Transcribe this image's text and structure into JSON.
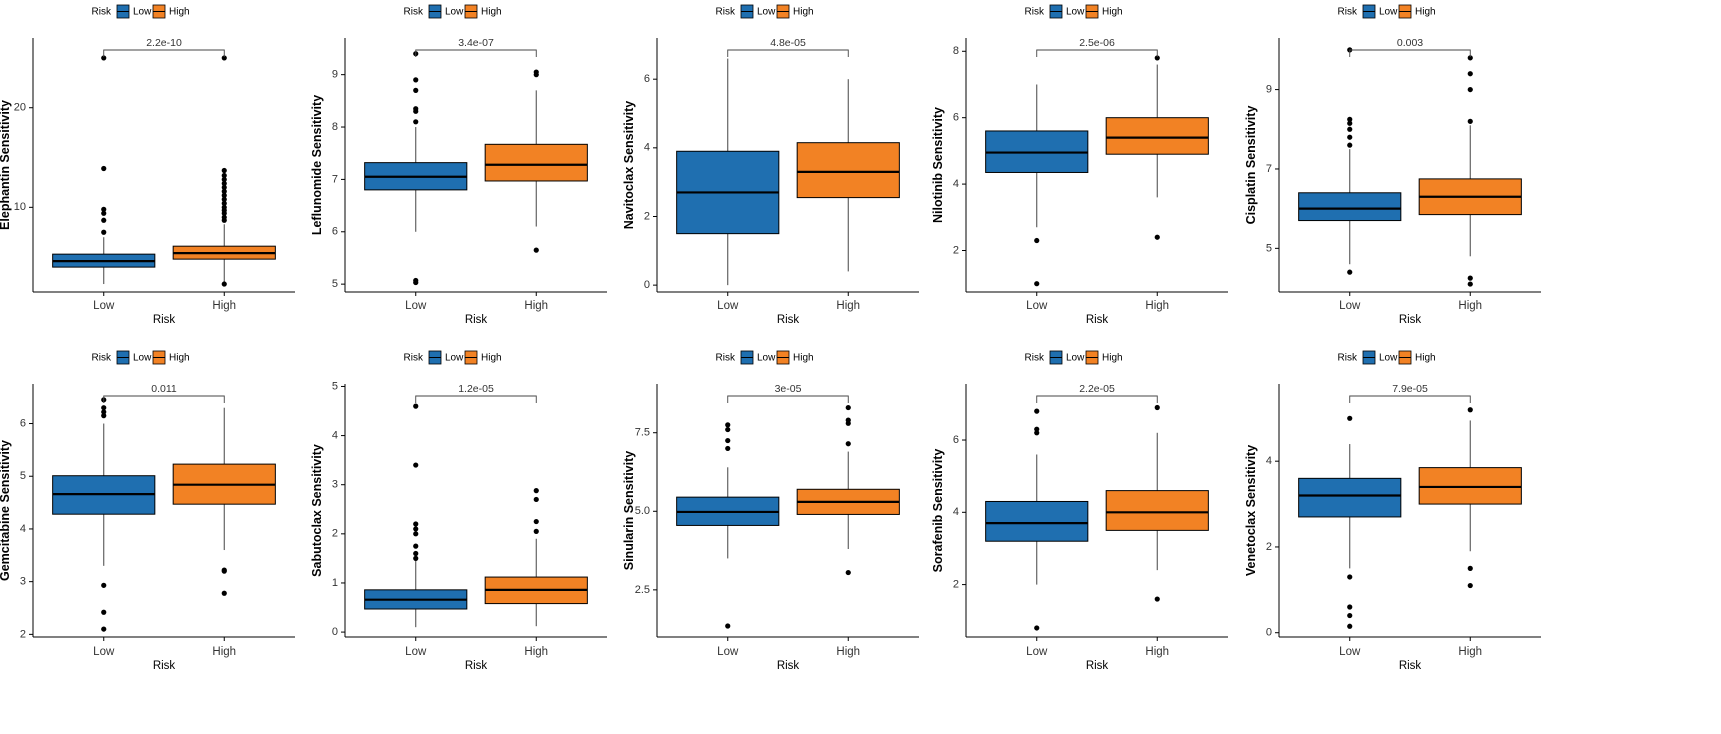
{
  "legend": {
    "title": "Risk",
    "labels": [
      "Low",
      "High"
    ]
  },
  "colors": {
    "low": "#1f6fb0",
    "high": "#f28224",
    "ink": "#000000",
    "bracket": "#444444"
  },
  "chart_data": [
    {
      "type": "box",
      "ylabel": "Elephantin Sensitivity",
      "xlabel": "Risk",
      "categories": [
        "Low",
        "High"
      ],
      "ylim": [
        1.5,
        27
      ],
      "yticks": [
        10,
        20
      ],
      "pvalue": "2.2e-10",
      "boxes": [
        {
          "name": "Low",
          "q1": 4.0,
          "median": 4.6,
          "q3": 5.3,
          "whisker_low": 2.3,
          "whisker_high": 7.0,
          "outliers": [
            7.5,
            8.7,
            9.4,
            9.8,
            13.9,
            25.0
          ]
        },
        {
          "name": "High",
          "q1": 4.8,
          "median": 5.4,
          "q3": 6.1,
          "whisker_low": 2.5,
          "whisker_high": 8.3,
          "outliers": [
            2.3,
            8.7,
            9.0,
            9.4,
            9.7,
            10.0,
            10.4,
            10.8,
            11.2,
            11.6,
            12.0,
            12.4,
            12.8,
            13.2,
            13.7,
            25.0
          ]
        }
      ]
    },
    {
      "type": "box",
      "ylabel": "Leflunomide Sensitivity",
      "xlabel": "Risk",
      "categories": [
        "Low",
        "High"
      ],
      "ylim": [
        4.85,
        9.7
      ],
      "yticks": [
        5,
        6,
        7,
        8,
        9
      ],
      "pvalue": "3.4e-07",
      "boxes": [
        {
          "name": "Low",
          "q1": 6.8,
          "median": 7.05,
          "q3": 7.32,
          "whisker_low": 6.0,
          "whisker_high": 8.0,
          "outliers": [
            5.03,
            5.07,
            8.1,
            8.3,
            8.35,
            8.7,
            8.9,
            9.4
          ]
        },
        {
          "name": "High",
          "q1": 6.97,
          "median": 7.28,
          "q3": 7.67,
          "whisker_low": 6.1,
          "whisker_high": 8.7,
          "outliers": [
            5.65,
            9.0,
            9.05
          ]
        }
      ]
    },
    {
      "type": "box",
      "ylabel": "Navitoclax Sensitivity",
      "xlabel": "Risk",
      "categories": [
        "Low",
        "High"
      ],
      "ylim": [
        -0.2,
        7.2
      ],
      "yticks": [
        0,
        2,
        4,
        6
      ],
      "pvalue": "4.8e-05",
      "boxes": [
        {
          "name": "Low",
          "q1": 1.5,
          "median": 2.7,
          "q3": 3.9,
          "whisker_low": 0.0,
          "whisker_high": 6.6,
          "outliers": []
        },
        {
          "name": "High",
          "q1": 2.55,
          "median": 3.3,
          "q3": 4.15,
          "whisker_low": 0.4,
          "whisker_high": 6.0,
          "outliers": []
        }
      ]
    },
    {
      "type": "box",
      "ylabel": "Nilotinib Sensitivity",
      "xlabel": "Risk",
      "categories": [
        "Low",
        "High"
      ],
      "ylim": [
        0.75,
        8.4
      ],
      "yticks": [
        2,
        4,
        6,
        8
      ],
      "pvalue": "2.5e-06",
      "boxes": [
        {
          "name": "Low",
          "q1": 4.35,
          "median": 4.95,
          "q3": 5.6,
          "whisker_low": 2.7,
          "whisker_high": 7.0,
          "outliers": [
            1.0,
            2.3
          ]
        },
        {
          "name": "High",
          "q1": 4.9,
          "median": 5.4,
          "q3": 6.0,
          "whisker_low": 3.6,
          "whisker_high": 7.6,
          "outliers": [
            2.4,
            7.8
          ]
        }
      ]
    },
    {
      "type": "box",
      "ylabel": "Cisplatin Sensitivity",
      "xlabel": "Risk",
      "categories": [
        "Low",
        "High"
      ],
      "ylim": [
        3.9,
        10.3
      ],
      "yticks": [
        5,
        7,
        9
      ],
      "pvalue": "0.003",
      "boxes": [
        {
          "name": "Low",
          "q1": 5.7,
          "median": 6.0,
          "q3": 6.4,
          "whisker_low": 4.6,
          "whisker_high": 7.5,
          "outliers": [
            4.4,
            7.6,
            7.8,
            8.0,
            8.15,
            8.25,
            10.0
          ]
        },
        {
          "name": "High",
          "q1": 5.85,
          "median": 6.3,
          "q3": 6.75,
          "whisker_low": 4.8,
          "whisker_high": 8.1,
          "outliers": [
            4.1,
            4.25,
            8.2,
            9.0,
            9.4,
            9.8
          ]
        }
      ]
    },
    {
      "type": "box",
      "ylabel": "Gemcitabine Sensitivity",
      "xlabel": "Risk",
      "categories": [
        "Low",
        "High"
      ],
      "ylim": [
        1.95,
        6.75
      ],
      "yticks": [
        2,
        3,
        4,
        5,
        6
      ],
      "pvalue": "0.011",
      "boxes": [
        {
          "name": "Low",
          "q1": 4.28,
          "median": 4.66,
          "q3": 5.01,
          "whisker_low": 3.3,
          "whisker_high": 6.0,
          "outliers": [
            2.1,
            2.42,
            2.93,
            6.15,
            6.22,
            6.3,
            6.45
          ]
        },
        {
          "name": "High",
          "q1": 4.47,
          "median": 4.84,
          "q3": 5.23,
          "whisker_low": 3.6,
          "whisker_high": 6.3,
          "outliers": [
            2.78,
            3.2,
            3.22
          ]
        }
      ]
    },
    {
      "type": "box",
      "ylabel": "Sabutoclax Sensitivity",
      "xlabel": "Risk",
      "categories": [
        "Low",
        "High"
      ],
      "ylim": [
        -0.1,
        5.05
      ],
      "yticks": [
        0,
        1,
        2,
        3,
        4,
        5
      ],
      "pvalue": "1.2e-05",
      "boxes": [
        {
          "name": "Low",
          "q1": 0.47,
          "median": 0.66,
          "q3": 0.86,
          "whisker_low": 0.1,
          "whisker_high": 1.45,
          "outliers": [
            1.5,
            1.6,
            1.75,
            2.0,
            2.1,
            2.2,
            3.4,
            4.6
          ]
        },
        {
          "name": "High",
          "q1": 0.58,
          "median": 0.86,
          "q3": 1.12,
          "whisker_low": 0.12,
          "whisker_high": 1.9,
          "outliers": [
            2.05,
            2.25,
            2.7,
            2.88
          ]
        }
      ]
    },
    {
      "type": "box",
      "ylabel": "Sinularin Sensitivity",
      "xlabel": "Risk",
      "categories": [
        "Low",
        "High"
      ],
      "ylim": [
        1.0,
        9.05
      ],
      "yticks": [
        2.5,
        5.0,
        7.5
      ],
      "ytick_labels": [
        "2.5",
        "5.0",
        "7.5"
      ],
      "pvalue": "3e-05",
      "boxes": [
        {
          "name": "Low",
          "q1": 4.55,
          "median": 4.98,
          "q3": 5.45,
          "whisker_low": 3.5,
          "whisker_high": 6.4,
          "outliers": [
            1.35,
            7.0,
            7.25,
            7.6,
            7.75
          ]
        },
        {
          "name": "High",
          "q1": 4.9,
          "median": 5.3,
          "q3": 5.7,
          "whisker_low": 3.8,
          "whisker_high": 6.9,
          "outliers": [
            3.05,
            7.15,
            7.8,
            7.9,
            8.3
          ]
        }
      ]
    },
    {
      "type": "box",
      "ylabel": "Sorafenib Sensitivity",
      "xlabel": "Risk",
      "categories": [
        "Low",
        "High"
      ],
      "ylim": [
        0.55,
        7.55
      ],
      "yticks": [
        2,
        4,
        6
      ],
      "pvalue": "2.2e-05",
      "boxes": [
        {
          "name": "Low",
          "q1": 3.2,
          "median": 3.7,
          "q3": 4.3,
          "whisker_low": 2.0,
          "whisker_high": 5.6,
          "outliers": [
            0.8,
            6.2,
            6.3,
            6.8
          ]
        },
        {
          "name": "High",
          "q1": 3.5,
          "median": 4.0,
          "q3": 4.6,
          "whisker_low": 2.4,
          "whisker_high": 6.2,
          "outliers": [
            1.6,
            6.9
          ]
        }
      ]
    },
    {
      "type": "box",
      "ylabel": "Venetoclax Sensitivity",
      "xlabel": "Risk",
      "categories": [
        "Low",
        "High"
      ],
      "ylim": [
        -0.1,
        5.8
      ],
      "yticks": [
        0,
        2,
        4
      ],
      "pvalue": "7.9e-05",
      "boxes": [
        {
          "name": "Low",
          "q1": 2.7,
          "median": 3.2,
          "q3": 3.6,
          "whisker_low": 1.5,
          "whisker_high": 4.4,
          "outliers": [
            0.15,
            0.4,
            0.6,
            1.3,
            5.0
          ]
        },
        {
          "name": "High",
          "q1": 3.0,
          "median": 3.4,
          "q3": 3.85,
          "whisker_low": 1.9,
          "whisker_high": 4.95,
          "outliers": [
            1.1,
            1.5,
            5.2
          ]
        }
      ]
    }
  ]
}
